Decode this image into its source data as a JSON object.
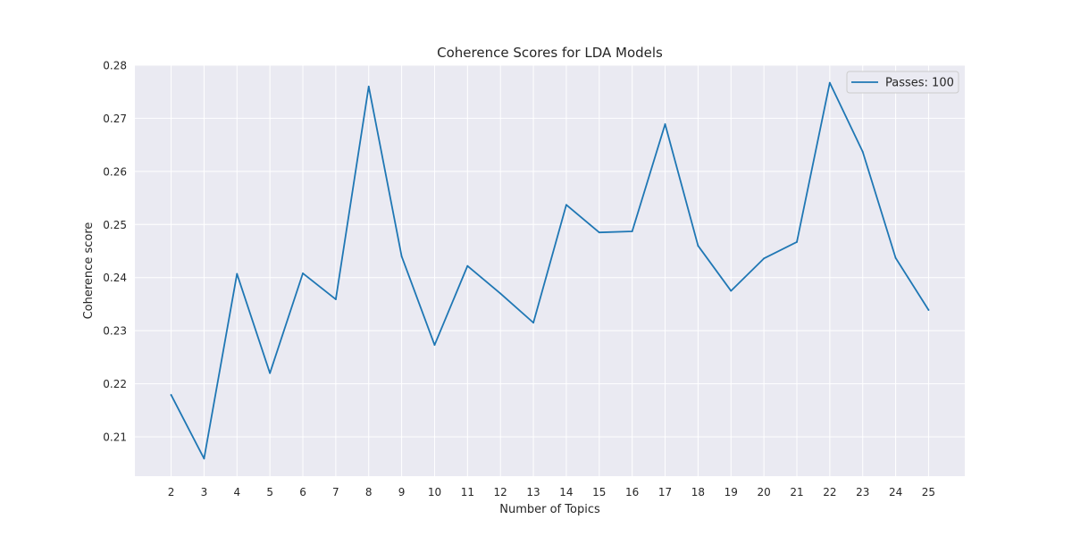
{
  "chart_data": {
    "type": "line",
    "title": "Coherence Scores for LDA Models",
    "xlabel": "Number of Topics",
    "ylabel": "Coherence score",
    "x": [
      2,
      3,
      4,
      5,
      6,
      7,
      8,
      9,
      10,
      11,
      12,
      13,
      14,
      15,
      16,
      17,
      18,
      19,
      20,
      21,
      22,
      23,
      24,
      25
    ],
    "series": [
      {
        "name": "Passes: 100",
        "color": "#1f77b4",
        "values": [
          0.2179,
          0.2059,
          0.2407,
          0.222,
          0.2408,
          0.2359,
          0.276,
          0.244,
          0.2273,
          0.2422,
          0.237,
          0.2315,
          0.2537,
          0.2485,
          0.2487,
          0.2689,
          0.246,
          0.2375,
          0.2436,
          0.2467,
          0.2767,
          0.2637,
          0.2437,
          0.2339
        ]
      }
    ],
    "xlim": [
      0.9,
      26.1
    ],
    "ylim": [
      0.2026,
      0.28
    ],
    "yticks": [
      "0.21",
      "0.22",
      "0.23",
      "0.24",
      "0.25",
      "0.26",
      "0.27",
      "0.28"
    ],
    "xticks": [
      "2",
      "3",
      "4",
      "5",
      "6",
      "7",
      "8",
      "9",
      "10",
      "11",
      "12",
      "13",
      "14",
      "15",
      "16",
      "17",
      "18",
      "19",
      "20",
      "21",
      "22",
      "23",
      "24",
      "25"
    ],
    "grid": true,
    "legend": "top-right",
    "background_color": "#eaeaf2",
    "grid_color": "#ffffff"
  }
}
